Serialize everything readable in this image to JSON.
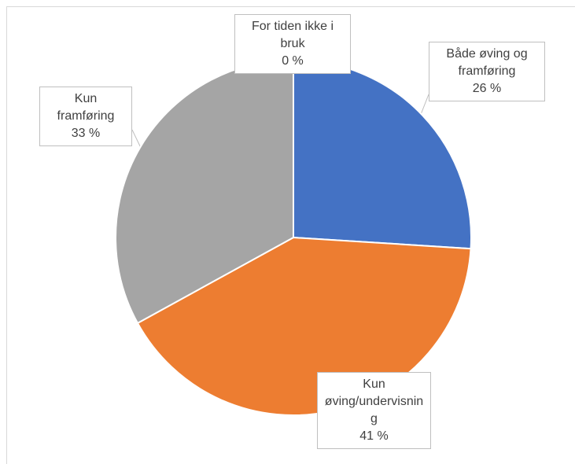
{
  "chart_data": {
    "type": "pie",
    "categories": [
      "Både øving og framføring",
      "Kun øving/undervisning",
      "Kun framføring",
      "For tiden ikke i bruk"
    ],
    "values": [
      26,
      41,
      33,
      0
    ],
    "value_labels": [
      "26 %",
      "41 %",
      "33 %",
      "0 %"
    ],
    "colors": [
      "#4472c4",
      "#ed7d31",
      "#a5a5a5",
      "#ffc000"
    ]
  }
}
